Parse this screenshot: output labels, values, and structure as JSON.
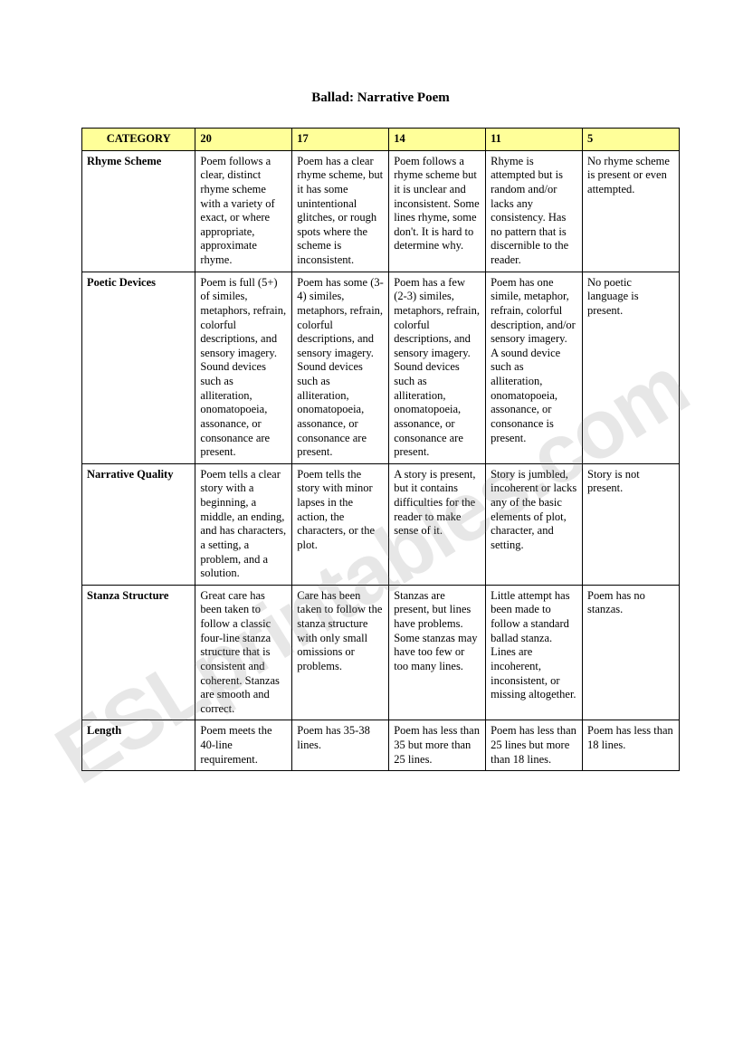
{
  "title": "Ballad: Narrative Poem",
  "watermark": "ESLprintables.com",
  "table": {
    "header_category": "CATEGORY",
    "scores": [
      "20",
      "17",
      "14",
      "11",
      "5"
    ],
    "rows": [
      {
        "category": "Rhyme Scheme",
        "cells": [
          "Poem follows a clear, distinct rhyme scheme with a variety of exact, or where appropriate, approximate rhyme.",
          "Poem has a clear rhyme scheme, but it has some unintentional glitches, or rough spots where the scheme is inconsistent.",
          "Poem follows a rhyme scheme but it is unclear and inconsistent. Some lines rhyme, some don't. It is hard to determine why.",
          "Rhyme is attempted but is random and/or lacks any consistency. Has no pattern that is discernible to the reader.",
          "No rhyme scheme is present or even attempted."
        ]
      },
      {
        "category": "Poetic Devices",
        "cells": [
          "Poem is full (5+) of similes, metaphors, refrain, colorful descriptions, and sensory imagery. Sound devices such as alliteration, onomatopoeia, assonance, or consonance are present.",
          "Poem has some (3-4) similes, metaphors, refrain, colorful descriptions, and sensory imagery. Sound devices such as alliteration, onomatopoeia, assonance, or consonance are present.",
          "Poem has a few (2-3) similes, metaphors, refrain, colorful descriptions, and sensory imagery. Sound devices such as alliteration, onomatopoeia, assonance, or consonance are present.",
          "Poem has one simile, metaphor, refrain, colorful description, and/or sensory imagery. A sound device such as alliteration, onomatopoeia, assonance, or consonance is present.",
          "No poetic language is present."
        ]
      },
      {
        "category": "Narrative Quality",
        "cells": [
          "Poem tells a clear story with a beginning, a middle, an ending, and has characters, a setting, a problem, and a solution.",
          "Poem tells the story with minor lapses in the action, the characters, or the plot.",
          "A story is present, but it contains difficulties for the reader to make sense of it.",
          "Story is jumbled, incoherent or lacks any of the basic elements of plot, character, and setting.",
          "Story is not present."
        ]
      },
      {
        "category": "Stanza Structure",
        "cells": [
          "Great care has been taken to follow a classic four-line stanza structure that is consistent and coherent. Stanzas are smooth and correct.",
          "Care has been taken to follow the stanza structure with only small omissions or problems.",
          "Stanzas are present, but lines have problems. Some stanzas may have too few or too many lines.",
          "Little attempt has been made to follow a standard ballad stanza. Lines are incoherent, inconsistent, or missing altogether.",
          "Poem has no stanzas."
        ]
      },
      {
        "category": "Length",
        "cells": [
          "Poem meets the 40-line requirement.",
          "Poem has 35-38 lines.",
          "Poem has less than 35 but more than 25 lines.",
          "Poem has less than 25 lines but more than 18 lines.",
          "Poem has less than 18 lines."
        ]
      }
    ]
  }
}
